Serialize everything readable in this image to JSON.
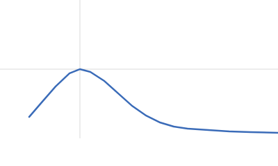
{
  "chart_data": {
    "type": "line",
    "x": [
      42,
      60,
      80,
      100,
      115,
      130,
      150,
      170,
      190,
      210,
      230,
      250,
      270,
      300,
      330,
      360,
      400
    ],
    "series": [
      {
        "color": "#3a6bb8",
        "values": [
          31,
          52,
          75,
          94,
          100,
          96,
          83,
          65,
          47,
          33,
          23,
          17,
          14,
          12,
          10,
          9,
          8
        ]
      }
    ],
    "xlim": [
      0,
      400
    ],
    "ylim": [
      0,
      200
    ],
    "xticks": [
      115
    ],
    "yticks": [
      100
    ],
    "grid": true
  }
}
